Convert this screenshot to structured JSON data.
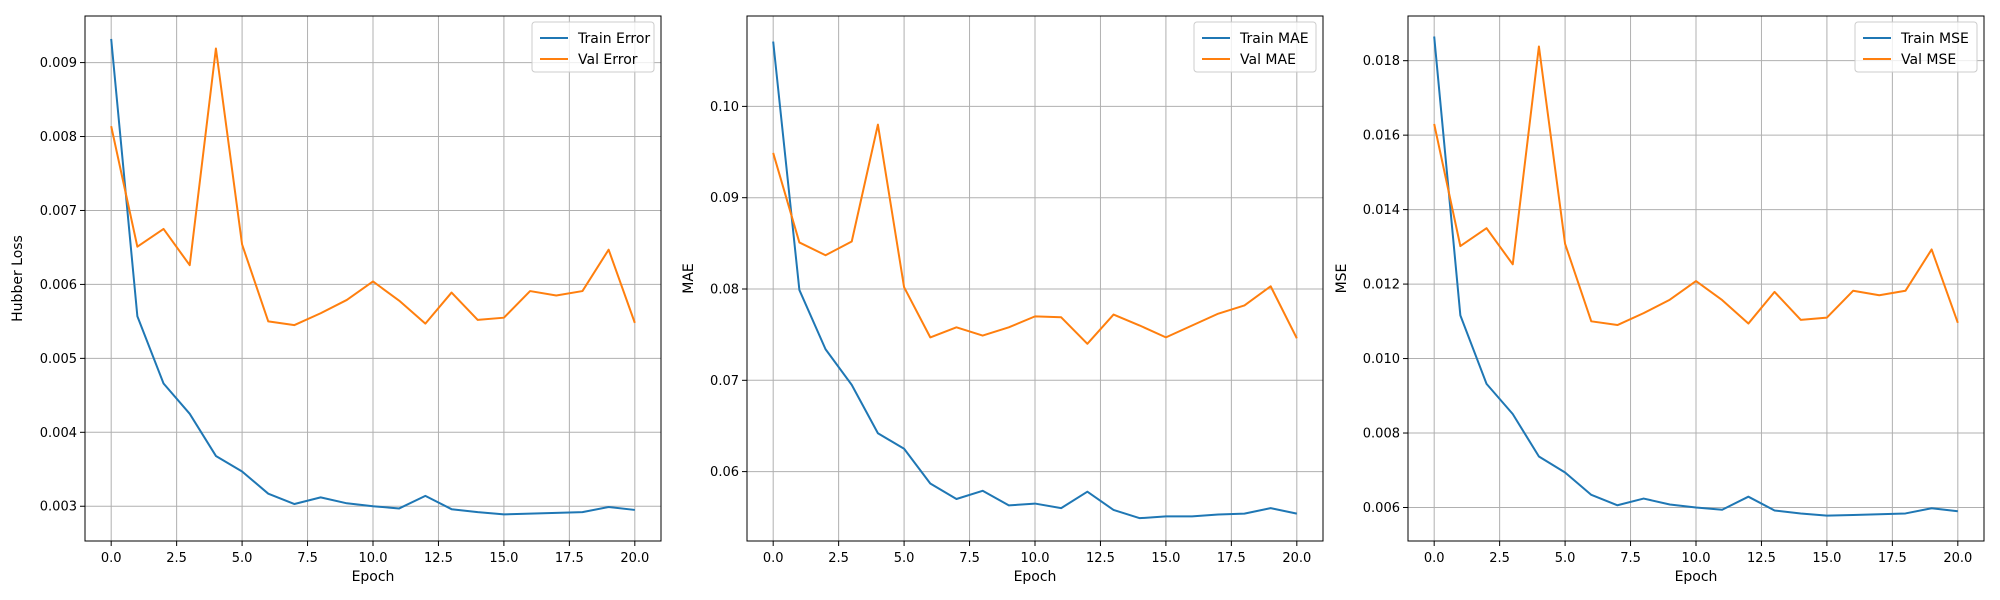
{
  "colors": {
    "train": "#1f77b4",
    "val": "#ff7f0e"
  },
  "chart_data": [
    {
      "type": "line",
      "title": "",
      "xlabel": "Epoch",
      "ylabel": "Hubber Loss",
      "xlim": [
        -1.0,
        21.0
      ],
      "ylim": [
        0.00253,
        0.00963
      ],
      "xticks": [
        0.0,
        2.5,
        5.0,
        7.5,
        10.0,
        12.5,
        15.0,
        17.5,
        20.0
      ],
      "xtick_labels": [
        "0.0",
        "2.5",
        "5.0",
        "7.5",
        "10.0",
        "12.5",
        "15.0",
        "17.5",
        "20.0"
      ],
      "yticks": [
        0.003,
        0.004,
        0.005,
        0.006,
        0.007,
        0.008,
        0.009
      ],
      "ytick_labels": [
        "0.003",
        "0.004",
        "0.005",
        "0.006",
        "0.007",
        "0.008",
        "0.009"
      ],
      "grid": true,
      "legend": "upper-right",
      "x": [
        0,
        1,
        2,
        3,
        4,
        5,
        6,
        7,
        8,
        9,
        10,
        11,
        12,
        13,
        14,
        15,
        16,
        17,
        18,
        19,
        20
      ],
      "series": [
        {
          "name": "Train Error",
          "color_key": "train",
          "values": [
            0.00932,
            0.00557,
            0.00466,
            0.00425,
            0.00368,
            0.00347,
            0.00317,
            0.00303,
            0.00312,
            0.00304,
            0.003,
            0.00297,
            0.00314,
            0.00296,
            0.00292,
            0.00289,
            0.0029,
            0.00291,
            0.00292,
            0.00299,
            0.00295
          ]
        },
        {
          "name": "Val Error",
          "color_key": "val",
          "values": [
            0.00814,
            0.00651,
            0.00675,
            0.00626,
            0.00919,
            0.00654,
            0.0055,
            0.00545,
            0.00561,
            0.00579,
            0.00604,
            0.00578,
            0.00547,
            0.00589,
            0.00552,
            0.00555,
            0.00591,
            0.00585,
            0.00591,
            0.00647,
            0.00548
          ]
        }
      ]
    },
    {
      "type": "line",
      "title": "",
      "xlabel": "Epoch",
      "ylabel": "MAE",
      "xlim": [
        -1.0,
        21.0
      ],
      "ylim": [
        0.0524,
        0.1099
      ],
      "xticks": [
        0.0,
        2.5,
        5.0,
        7.5,
        10.0,
        12.5,
        15.0,
        17.5,
        20.0
      ],
      "xtick_labels": [
        "0.0",
        "2.5",
        "5.0",
        "7.5",
        "10.0",
        "12.5",
        "15.0",
        "17.5",
        "20.0"
      ],
      "yticks": [
        0.06,
        0.07,
        0.08,
        0.09,
        0.1
      ],
      "ytick_labels": [
        "0.06",
        "0.07",
        "0.08",
        "0.09",
        "0.10"
      ],
      "grid": true,
      "legend": "upper-right",
      "x": [
        0,
        1,
        2,
        3,
        4,
        5,
        6,
        7,
        8,
        9,
        10,
        11,
        12,
        13,
        14,
        15,
        16,
        17,
        18,
        19,
        20
      ],
      "series": [
        {
          "name": "Train MAE",
          "color_key": "train",
          "values": [
            0.1071,
            0.0799,
            0.0734,
            0.0695,
            0.0642,
            0.0625,
            0.0587,
            0.057,
            0.0579,
            0.0563,
            0.0565,
            0.056,
            0.0578,
            0.0558,
            0.0549,
            0.0551,
            0.0551,
            0.0553,
            0.0554,
            0.056,
            0.0554
          ]
        },
        {
          "name": "Val MAE",
          "color_key": "val",
          "values": [
            0.0949,
            0.0851,
            0.0837,
            0.0852,
            0.098,
            0.0802,
            0.0747,
            0.0758,
            0.0749,
            0.0758,
            0.077,
            0.0769,
            0.074,
            0.0772,
            0.076,
            0.0747,
            0.076,
            0.0773,
            0.0782,
            0.0803,
            0.0746
          ]
        }
      ]
    },
    {
      "type": "line",
      "title": "",
      "xlabel": "Epoch",
      "ylabel": "MSE",
      "xlim": [
        -1.0,
        21.0
      ],
      "ylim": [
        0.0051,
        0.0192
      ],
      "xticks": [
        0.0,
        2.5,
        5.0,
        7.5,
        10.0,
        12.5,
        15.0,
        17.5,
        20.0
      ],
      "xtick_labels": [
        "0.0",
        "2.5",
        "5.0",
        "7.5",
        "10.0",
        "12.5",
        "15.0",
        "17.5",
        "20.0"
      ],
      "yticks": [
        0.006,
        0.008,
        0.01,
        0.012,
        0.014,
        0.016,
        0.018
      ],
      "ytick_labels": [
        "0.006",
        "0.008",
        "0.010",
        "0.012",
        "0.014",
        "0.016",
        "0.018"
      ],
      "grid": true,
      "legend": "upper-right",
      "x": [
        0,
        1,
        2,
        3,
        4,
        5,
        6,
        7,
        8,
        9,
        10,
        11,
        12,
        13,
        14,
        15,
        16,
        17,
        18,
        19,
        20
      ],
      "series": [
        {
          "name": "Train MSE",
          "color_key": "train",
          "values": [
            0.01865,
            0.01116,
            0.00932,
            0.00851,
            0.00737,
            0.00694,
            0.00634,
            0.00606,
            0.00624,
            0.00608,
            0.006,
            0.00594,
            0.00629,
            0.00592,
            0.00584,
            0.00578,
            0.0058,
            0.00582,
            0.00584,
            0.00598,
            0.0059
          ]
        },
        {
          "name": "Val MSE",
          "color_key": "val",
          "values": [
            0.0163,
            0.01302,
            0.0135,
            0.01253,
            0.01838,
            0.01308,
            0.011,
            0.0109,
            0.01122,
            0.01158,
            0.01208,
            0.01157,
            0.01094,
            0.01179,
            0.01104,
            0.0111,
            0.01182,
            0.0117,
            0.01182,
            0.01293,
            0.01096
          ]
        }
      ]
    }
  ]
}
